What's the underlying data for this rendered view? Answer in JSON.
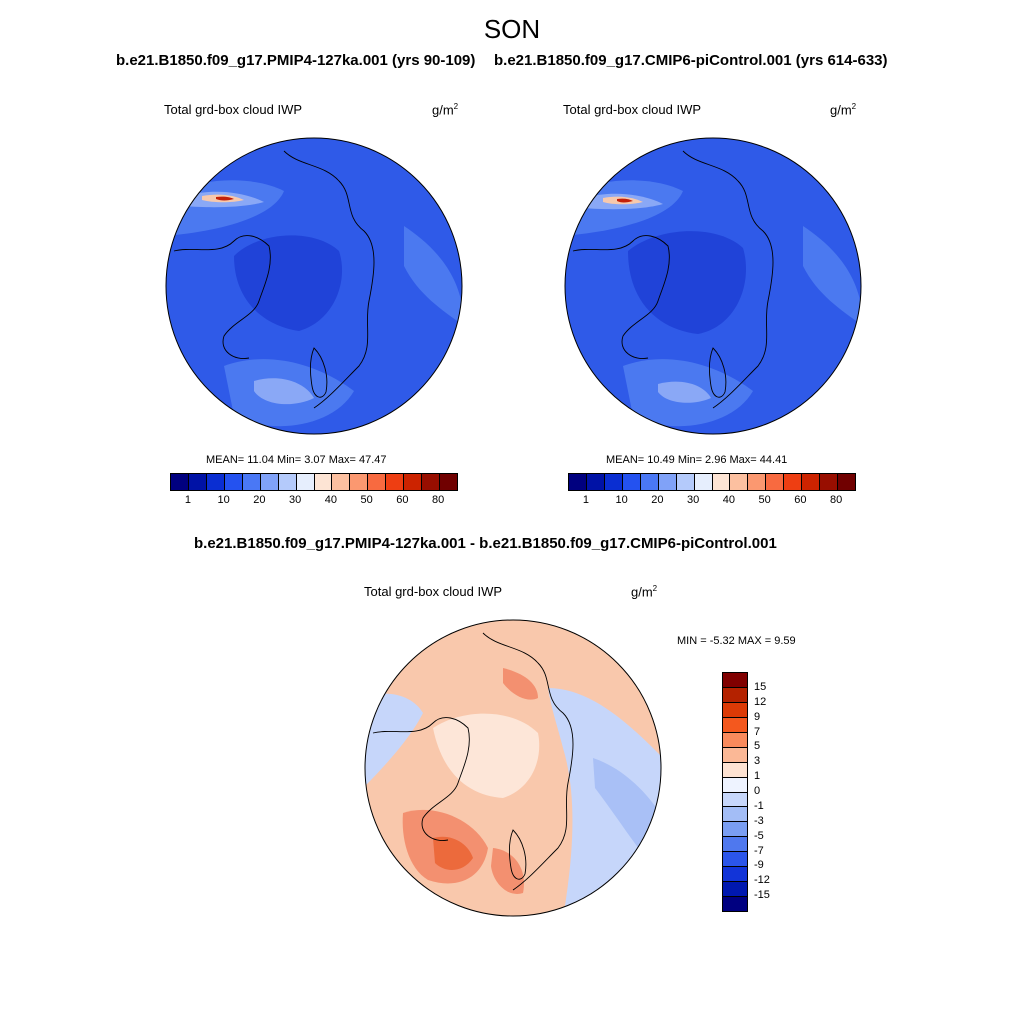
{
  "figure": {
    "season": "SON",
    "panel_a": {
      "case": "b.e21.B1850.f09_g17.PMIP4-127ka.001 (yrs 90-109)",
      "variable": "Total grd-box cloud IWP",
      "unit_base": "g/m",
      "unit_exp": "2",
      "stats": "MEAN=  11.04  Min=   3.07  Max=  47.47"
    },
    "panel_b": {
      "case": "b.e21.B1850.f09_g17.CMIP6-piControl.001 (yrs 614-633)",
      "variable": "Total grd-box cloud IWP",
      "unit_base": "g/m",
      "unit_exp": "2",
      "stats": "MEAN=  10.49  Min=   2.96  Max=  44.41"
    },
    "panel_diff": {
      "case": "b.e21.B1850.f09_g17.PMIP4-127ka.001 - b.e21.B1850.f09_g17.CMIP6-piControl.001",
      "variable": "Total grd-box cloud IWP",
      "unit_base": "g/m",
      "unit_exp": "2",
      "stats": "MIN =  -5.32 MAX =   9.59"
    }
  },
  "colorbar_abs": {
    "colors": [
      "#00007f",
      "#0012a6",
      "#0a2ed2",
      "#2452f0",
      "#4a78f5",
      "#80a2f8",
      "#b4cafb",
      "#e6eefd",
      "#fde4d4",
      "#fcc0a0",
      "#fb9870",
      "#f86a40",
      "#ee3e12",
      "#cc2300",
      "#980e00",
      "#700000"
    ],
    "tick_labels": [
      "1",
      "10",
      "20",
      "30",
      "40",
      "50",
      "60",
      "80"
    ]
  },
  "colorbar_diff": {
    "colors": [
      "#800000",
      "#b42200",
      "#dc3a06",
      "#f4581e",
      "#f98a5c",
      "#fbb896",
      "#fde2d2",
      "#eef3ff",
      "#c7d7fb",
      "#a3bdf6",
      "#7a9ef2",
      "#4f78ee",
      "#2b55ea",
      "#1234d8",
      "#0018b0",
      "#000080"
    ],
    "tick_labels": [
      "15",
      "12",
      "9",
      "7",
      "5",
      "3",
      "1",
      "0",
      "-1",
      "-3",
      "-5",
      "-7",
      "-9",
      "-12",
      "-15"
    ]
  },
  "map_colors": {
    "deep": "#2043d8",
    "mid": "#2f5ae8",
    "light": "#4b79f0",
    "pale": "#8aa8f6",
    "warm": "#f7c9ad",
    "hot": "#c42008",
    "diff_base": "#f9c8ac",
    "diff_warm": "#f39070",
    "diff_hot": "#ec6a3c",
    "diff_pale": "#fde6d8",
    "diff_cool": "#c6d6fa",
    "diff_cooler": "#a9c0f6"
  },
  "chart_data": [
    {
      "type": "heatmap",
      "title": "b.e21.B1850.f09_g17.PMIP4-127ka.001 (yrs 90-109)",
      "variable": "Total grd-box cloud IWP",
      "units": "g/m2",
      "projection": "north polar stereographic",
      "contour_levels": [
        1,
        5,
        10,
        15,
        20,
        25,
        30,
        35,
        40,
        45,
        50,
        55,
        60,
        70,
        80
      ],
      "mean": 11.04,
      "min": 3.07,
      "max": 47.47
    },
    {
      "type": "heatmap",
      "title": "b.e21.B1850.f09_g17.CMIP6-piControl.001 (yrs 614-633)",
      "variable": "Total grd-box cloud IWP",
      "units": "g/m2",
      "projection": "north polar stereographic",
      "contour_levels": [
        1,
        5,
        10,
        15,
        20,
        25,
        30,
        35,
        40,
        45,
        50,
        55,
        60,
        70,
        80
      ],
      "mean": 10.49,
      "min": 2.96,
      "max": 44.41
    },
    {
      "type": "heatmap",
      "title": "b.e21.B1850.f09_g17.PMIP4-127ka.001 - b.e21.B1850.f09_g17.CMIP6-piControl.001",
      "variable": "Total grd-box cloud IWP",
      "units": "g/m2",
      "projection": "north polar stereographic",
      "contour_levels": [
        -15,
        -12,
        -9,
        -7,
        -5,
        -3,
        -1,
        0,
        1,
        3,
        5,
        7,
        9,
        12,
        15
      ],
      "min": -5.32,
      "max": 9.59
    }
  ]
}
